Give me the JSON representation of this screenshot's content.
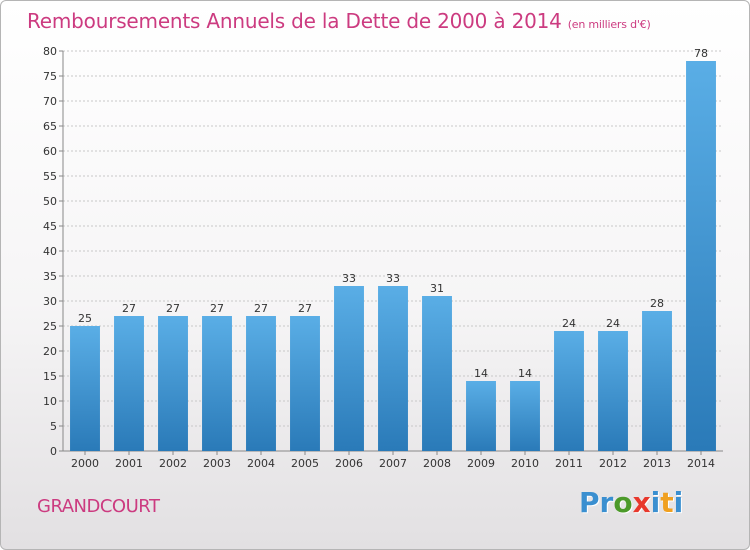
{
  "header": {
    "title": "Remboursements Annuels de la Dette de 2000 à 2014",
    "unit": "(en milliers d'€)"
  },
  "footer": {
    "city": "GRANDCOURT",
    "logo": [
      "P",
      "r",
      "o",
      "x",
      "i",
      "t",
      "i"
    ],
    "logo_colors": [
      "#3a8fd0",
      "#3a8fd0",
      "#4c9a2a",
      "#e8382c",
      "#3a8fd0",
      "#f0a020",
      "#3a8fd0"
    ]
  },
  "colors": {
    "bar_light": "#5aaee6",
    "bar_dark": "#2a7ab8",
    "grid": "#c8c8c8",
    "axis": "#888888"
  },
  "chart_data": {
    "type": "bar",
    "title": "Remboursements Annuels de la Dette de 2000 à 2014",
    "xlabel": "",
    "ylabel": "",
    "categories": [
      "2000",
      "2001",
      "2002",
      "2003",
      "2004",
      "2005",
      "2006",
      "2007",
      "2008",
      "2009",
      "2010",
      "2011",
      "2012",
      "2013",
      "2014"
    ],
    "values": [
      25,
      27,
      27,
      27,
      27,
      27,
      33,
      33,
      31,
      14,
      14,
      24,
      24,
      28,
      78
    ],
    "ylim": [
      0,
      80
    ],
    "yticks": [
      0,
      5,
      10,
      15,
      20,
      25,
      30,
      35,
      40,
      45,
      50,
      55,
      60,
      65,
      70,
      75,
      80
    ],
    "grid": true
  }
}
